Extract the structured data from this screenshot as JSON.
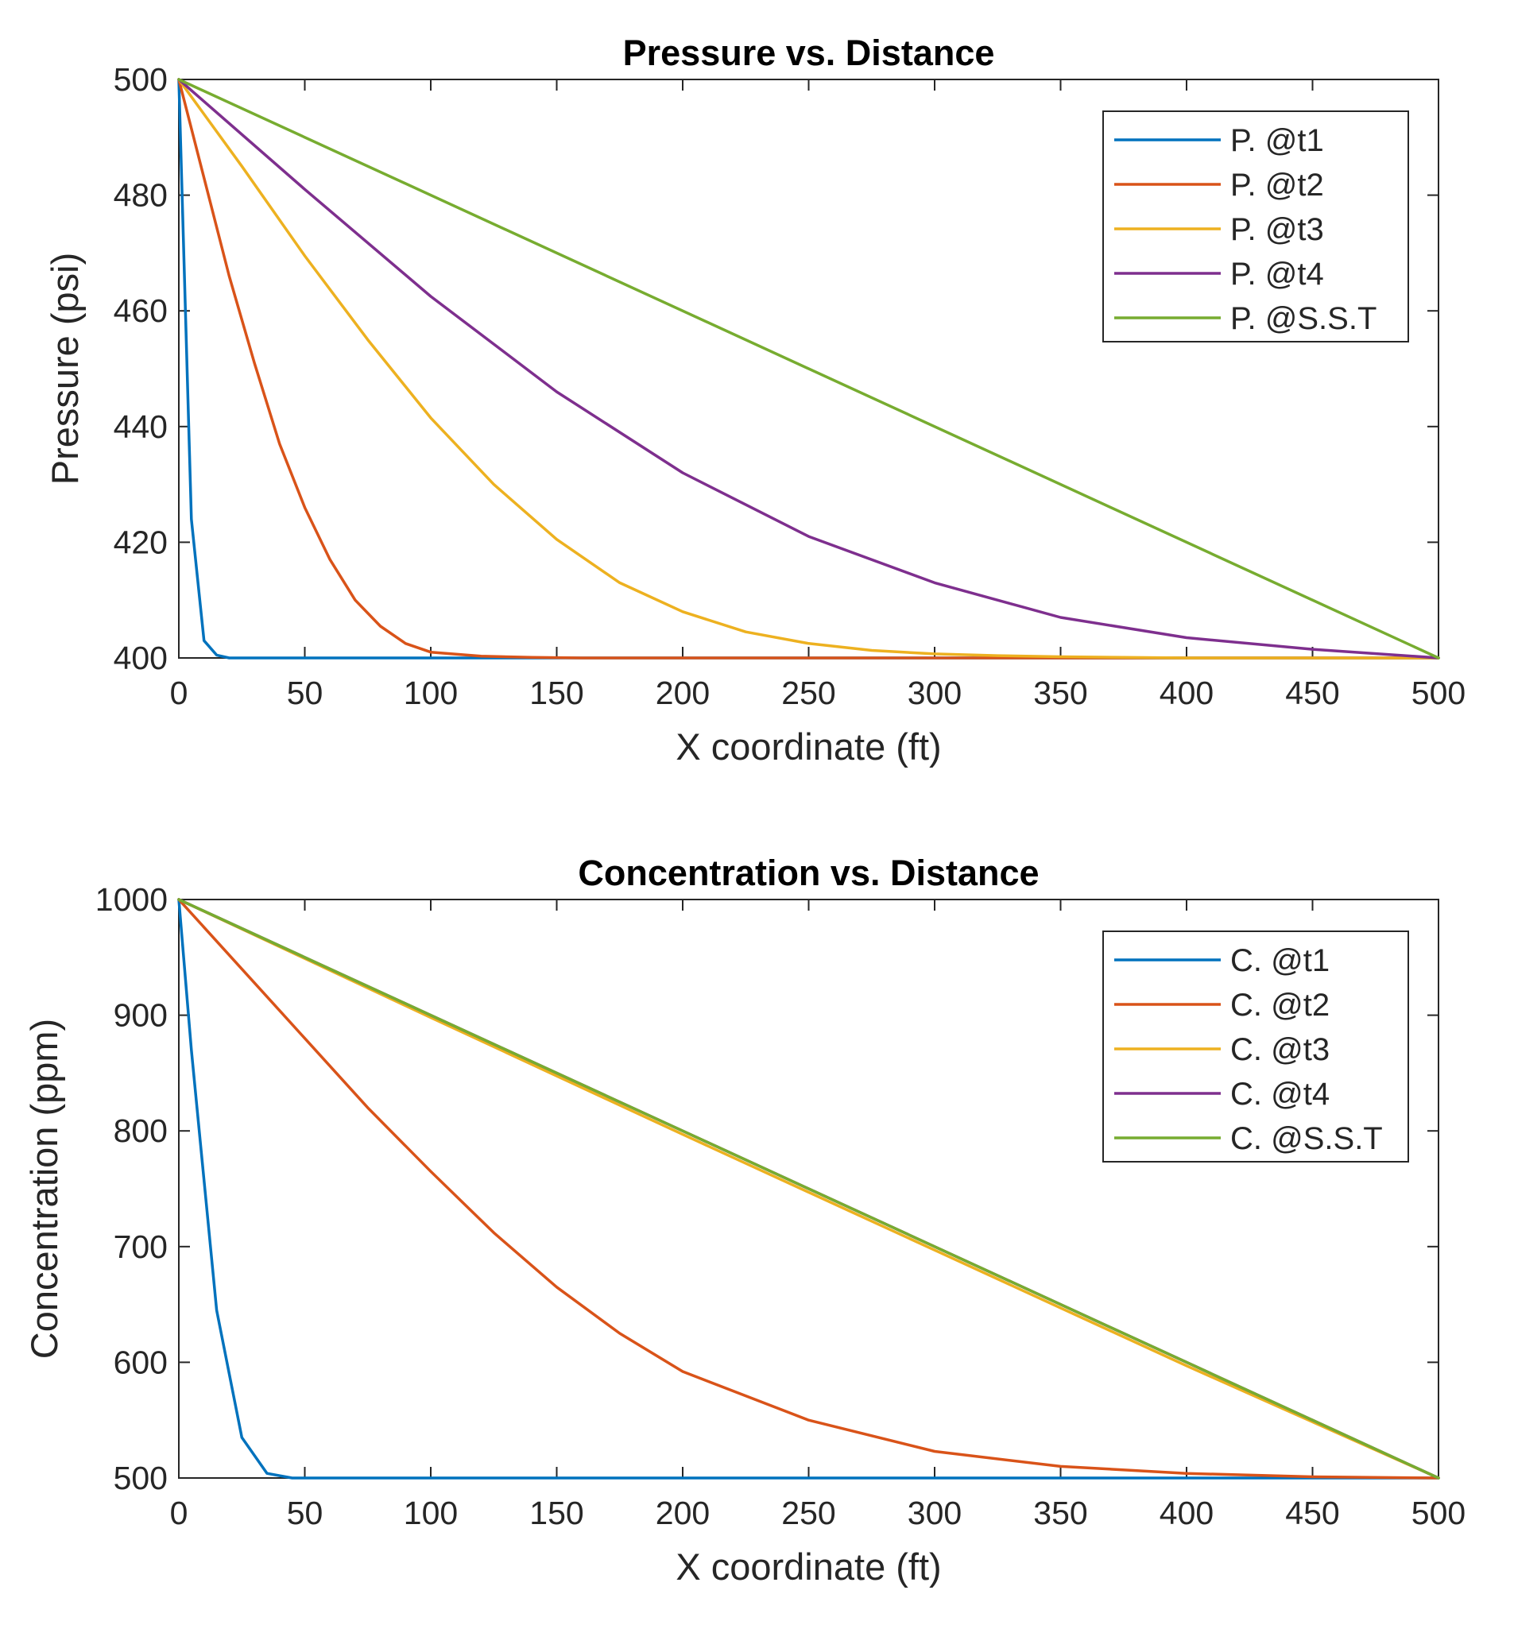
{
  "colors": {
    "blue": "#0072BD",
    "orange": "#D95319",
    "yellow": "#EDB120",
    "purple": "#7E2F8E",
    "green": "#77AC30"
  },
  "chart_data": [
    {
      "type": "line",
      "title": "Pressure vs. Distance",
      "xlabel": "X coordinate (ft)",
      "ylabel": "Pressure (psi)",
      "xlim": [
        0,
        500
      ],
      "ylim": [
        400,
        500
      ],
      "xticks": [
        0,
        50,
        100,
        150,
        200,
        250,
        300,
        350,
        400,
        450,
        500
      ],
      "yticks": [
        400,
        420,
        440,
        460,
        480,
        500
      ],
      "grid": false,
      "legend_position": "top-right",
      "series": [
        {
          "name": "P. @t1",
          "color": "#0072BD",
          "x": [
            0,
            5,
            10,
            15,
            20,
            30,
            50,
            100,
            200,
            300,
            400,
            500
          ],
          "y": [
            500,
            424,
            403,
            400.5,
            400,
            400,
            400,
            400,
            400,
            400,
            400,
            400
          ]
        },
        {
          "name": "P. @t2",
          "color": "#D95319",
          "x": [
            0,
            10,
            20,
            30,
            40,
            50,
            60,
            70,
            80,
            90,
            100,
            120,
            140,
            160,
            200,
            300,
            400,
            500
          ],
          "y": [
            500,
            483,
            466,
            451,
            437,
            426,
            417,
            410,
            405.5,
            402.5,
            401,
            400.3,
            400.1,
            400,
            400,
            400,
            400,
            400
          ]
        },
        {
          "name": "P. @t3",
          "color": "#EDB120",
          "x": [
            0,
            25,
            50,
            75,
            100,
            125,
            150,
            175,
            200,
            225,
            250,
            275,
            300,
            325,
            350,
            375,
            400,
            450,
            500
          ],
          "y": [
            500,
            485,
            469.5,
            455,
            441.5,
            430,
            420.5,
            413,
            408,
            404.5,
            402.5,
            401.3,
            400.7,
            400.4,
            400.2,
            400.1,
            400,
            400,
            400
          ]
        },
        {
          "name": "P. @t4",
          "color": "#7E2F8E",
          "x": [
            0,
            50,
            100,
            150,
            200,
            250,
            300,
            350,
            400,
            450,
            500
          ],
          "y": [
            500,
            481,
            462.5,
            446,
            432,
            421,
            413,
            407,
            403.5,
            401.5,
            400
          ]
        },
        {
          "name": "P. @S.S.T",
          "color": "#77AC30",
          "x": [
            0,
            500
          ],
          "y": [
            500,
            400
          ]
        }
      ]
    },
    {
      "type": "line",
      "title": "Concentration vs. Distance",
      "xlabel": "X coordinate (ft)",
      "ylabel": "Concentration (ppm)",
      "xlim": [
        0,
        500
      ],
      "ylim": [
        500,
        1000
      ],
      "xticks": [
        0,
        50,
        100,
        150,
        200,
        250,
        300,
        350,
        400,
        450,
        500
      ],
      "yticks": [
        500,
        600,
        700,
        800,
        900,
        1000
      ],
      "grid": false,
      "legend_position": "top-right",
      "series": [
        {
          "name": "C. @t1",
          "color": "#0072BD",
          "x": [
            0,
            5,
            15,
            25,
            35,
            45,
            50,
            100,
            200,
            300,
            400,
            500
          ],
          "y": [
            1000,
            870,
            645,
            535,
            504,
            500,
            500,
            500,
            500,
            500,
            500,
            500
          ]
        },
        {
          "name": "C. @t2",
          "color": "#D95319",
          "x": [
            0,
            25,
            50,
            75,
            100,
            125,
            150,
            175,
            200,
            250,
            300,
            350,
            400,
            450,
            500
          ],
          "y": [
            1000,
            940,
            880,
            820,
            765,
            712,
            665,
            625,
            592,
            550,
            523,
            510,
            504,
            501,
            500
          ]
        },
        {
          "name": "C. @t3",
          "color": "#EDB120",
          "x": [
            0,
            100,
            200,
            300,
            400,
            500
          ],
          "y": [
            1000,
            898,
            797,
            697,
            597,
            500
          ]
        },
        {
          "name": "C. @t4",
          "color": "#7E2F8E",
          "x": [
            0,
            100,
            200,
            300,
            400,
            500
          ],
          "y": [
            1000,
            900,
            800,
            700,
            600,
            500
          ]
        },
        {
          "name": "C. @S.S.T",
          "color": "#77AC30",
          "x": [
            0,
            500
          ],
          "y": [
            1000,
            500
          ]
        }
      ]
    }
  ]
}
